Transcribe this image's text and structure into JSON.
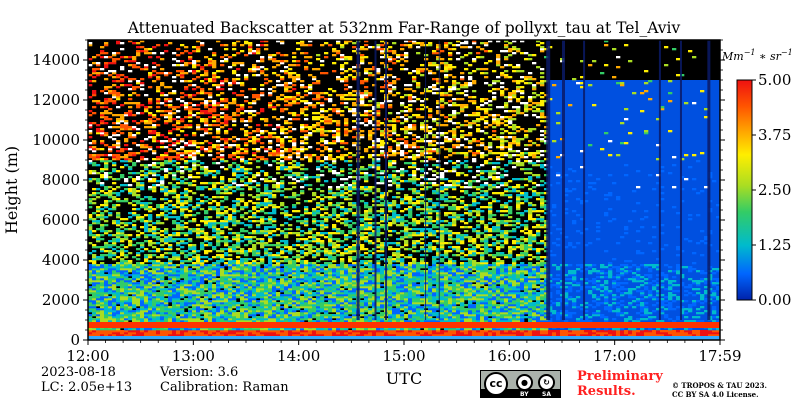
{
  "chart_data": {
    "type": "heatmap",
    "title": "Attenuated Backscatter at 532nm Far-Range of pollyxt_tau at Tel_Aviv",
    "xlabel": "UTC",
    "ylabel": "Height (m)",
    "x_ticks": [
      "12:00",
      "13:00",
      "14:00",
      "15:00",
      "16:00",
      "17:00",
      "17:59"
    ],
    "x_range": [
      "12:00",
      "17:59"
    ],
    "y_ticks": [
      0,
      2000,
      4000,
      6000,
      8000,
      10000,
      12000,
      14000
    ],
    "y_range": [
      0,
      15000
    ],
    "colorbar": {
      "units": "Mm^-1 * sr^-1",
      "range": [
        0.0,
        5.0
      ],
      "tick_labels": [
        "0.00",
        "1.25",
        "2.50",
        "3.75",
        "5.00"
      ],
      "colormap": [
        "#0022aa",
        "#0066ff",
        "#00bbcc",
        "#33cc66",
        "#aadd22",
        "#ffee00",
        "#ffaa00",
        "#ff5500",
        "#ee1111"
      ]
    },
    "features": {
      "surface_layer_height": [
        0,
        200
      ],
      "boundary_layer_height": [
        600,
        900
      ],
      "cloud_free_gap_start": "16:22",
      "high_noise_top": 15000
    }
  },
  "footer": {
    "date": "2023-08-18",
    "version": "Version: 3.6",
    "lc": "LC: 2.05e+13",
    "calibration": "Calibration: Raman",
    "preliminary_line1": "Preliminary",
    "preliminary_line2": "Results.",
    "preliminary_color": "#ff2020",
    "copyright_line1": "© TROPOS & TAU 2023.",
    "copyright_line2": "CC BY SA 4.0 License.",
    "license_badge": {
      "main": "cc",
      "by": "BY",
      "sa": "SA"
    }
  }
}
